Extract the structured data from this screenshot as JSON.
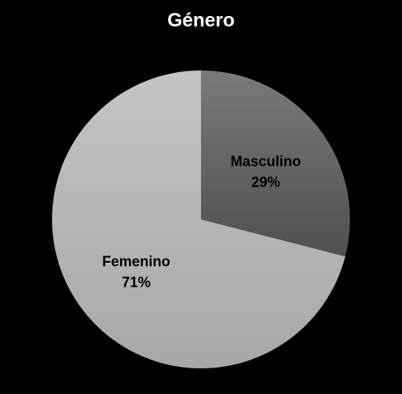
{
  "chart_data": {
    "type": "pie",
    "title": "Género",
    "start_angle_deg": 0,
    "direction": "clockwise",
    "slices": [
      {
        "label": "Masculino",
        "value": 29,
        "value_label": "29%",
        "color_light": "#7a7a7a",
        "color_dark": "#4f4f4f"
      },
      {
        "label": "Femenino",
        "value": 71,
        "value_label": "71%",
        "color_light": "#c4c4c4",
        "color_dark": "#a8a8a8"
      }
    ],
    "legend": "none"
  }
}
